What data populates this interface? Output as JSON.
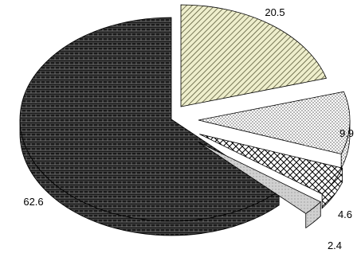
{
  "chart_data": {
    "type": "pie",
    "title": "",
    "slices": [
      {
        "value": 62.6,
        "label": "62.6",
        "pattern": "dark-brick",
        "colors": [
          "#1a1a1a",
          "#8a8a8a"
        ]
      },
      {
        "value": 20.5,
        "label": "20.5",
        "pattern": "olive-diagonal-stripes",
        "colors": [
          "#eeeecc",
          "#5a5a3a"
        ]
      },
      {
        "value": 9.9,
        "label": "9.9",
        "pattern": "dots",
        "colors": [
          "#ffffff",
          "#000000"
        ]
      },
      {
        "value": 4.6,
        "label": "4.6",
        "pattern": "crosshatch",
        "colors": [
          "#ffffff",
          "#000000"
        ]
      },
      {
        "value": 2.4,
        "label": "2.4",
        "pattern": "light-gray",
        "colors": [
          "#d0d0d0",
          "#5a5a5a"
        ]
      }
    ],
    "legend": "none",
    "style": "3d-exploded"
  }
}
